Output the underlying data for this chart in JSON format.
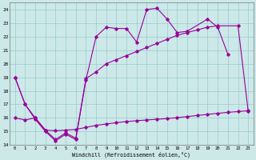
{
  "line_color": "#990099",
  "bg_color": "#cce8e8",
  "grid_color": "#99cccc",
  "xlabel": "Windchill (Refroidissement éolien,°C)",
  "ylim": [
    14,
    24.5
  ],
  "xlim": [
    -0.5,
    23.5
  ],
  "yticks": [
    14,
    15,
    16,
    17,
    18,
    19,
    20,
    21,
    22,
    23,
    24
  ],
  "xticks": [
    0,
    1,
    2,
    3,
    4,
    5,
    6,
    7,
    8,
    9,
    10,
    11,
    12,
    13,
    14,
    15,
    16,
    17,
    18,
    19,
    20,
    21,
    22,
    23
  ],
  "curve_top_x": [
    0,
    1,
    2,
    3,
    4,
    5,
    6,
    7,
    8,
    9,
    10,
    11,
    12,
    13,
    14,
    15,
    16,
    17,
    19,
    20,
    21
  ],
  "curve_top_y": [
    19.0,
    17.0,
    15.9,
    15.0,
    14.3,
    14.8,
    14.4,
    18.8,
    22.0,
    22.7,
    22.6,
    22.6,
    21.6,
    24.0,
    24.1,
    23.3,
    22.3,
    22.4,
    23.3,
    22.7,
    20.7
  ],
  "curve_mid_x": [
    0,
    1,
    2,
    3,
    4,
    5,
    6,
    7,
    8,
    9,
    10,
    11,
    12,
    13,
    14,
    15,
    16,
    17,
    18,
    19,
    20,
    22,
    23
  ],
  "curve_mid_y": [
    19.0,
    17.0,
    16.0,
    15.1,
    14.4,
    14.9,
    14.5,
    18.9,
    19.4,
    20.0,
    20.3,
    20.6,
    20.9,
    21.2,
    21.5,
    21.8,
    22.1,
    22.3,
    22.5,
    22.7,
    22.8,
    22.8,
    16.5
  ],
  "curve_bot_x": [
    0,
    1,
    2,
    3,
    4,
    5,
    6,
    7,
    8,
    9,
    10,
    11,
    12,
    13,
    14,
    15,
    16,
    17,
    18,
    19,
    20,
    21,
    22,
    23
  ],
  "curve_bot_y": [
    16.0,
    15.85,
    16.0,
    15.1,
    15.05,
    15.1,
    15.15,
    15.3,
    15.45,
    15.55,
    15.65,
    15.73,
    15.79,
    15.85,
    15.9,
    15.95,
    16.02,
    16.1,
    16.18,
    16.26,
    16.34,
    16.41,
    16.47,
    16.53
  ]
}
